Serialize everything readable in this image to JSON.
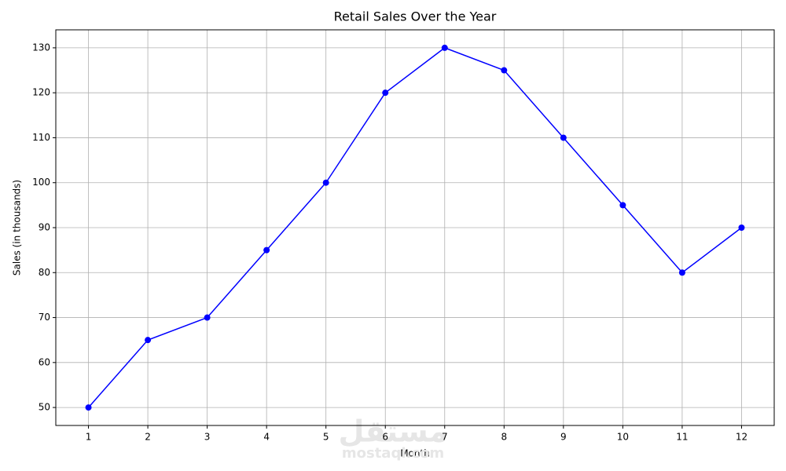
{
  "chart_data": {
    "type": "line",
    "title": "Retail Sales Over the Year",
    "x_label": "Month",
    "y_label": "Sales (in thousands)",
    "x": [
      1,
      2,
      3,
      4,
      5,
      6,
      7,
      8,
      9,
      10,
      11,
      12
    ],
    "series": [
      {
        "name": "Sales",
        "color": "#0000ff",
        "values": [
          50,
          65,
          70,
          85,
          100,
          120,
          130,
          125,
          110,
          95,
          80,
          90
        ]
      }
    ],
    "xlim": [
      0.45,
      12.55
    ],
    "xticks": [
      1,
      2,
      3,
      4,
      5,
      6,
      7,
      8,
      9,
      10,
      11,
      12
    ],
    "ylim": [
      46,
      134
    ],
    "yticks": [
      50,
      60,
      70,
      80,
      90,
      100,
      110,
      120,
      130
    ],
    "grid": true,
    "marker": "circle"
  },
  "watermark": {
    "logo": "مستقل",
    "text": "mostaql.com"
  }
}
